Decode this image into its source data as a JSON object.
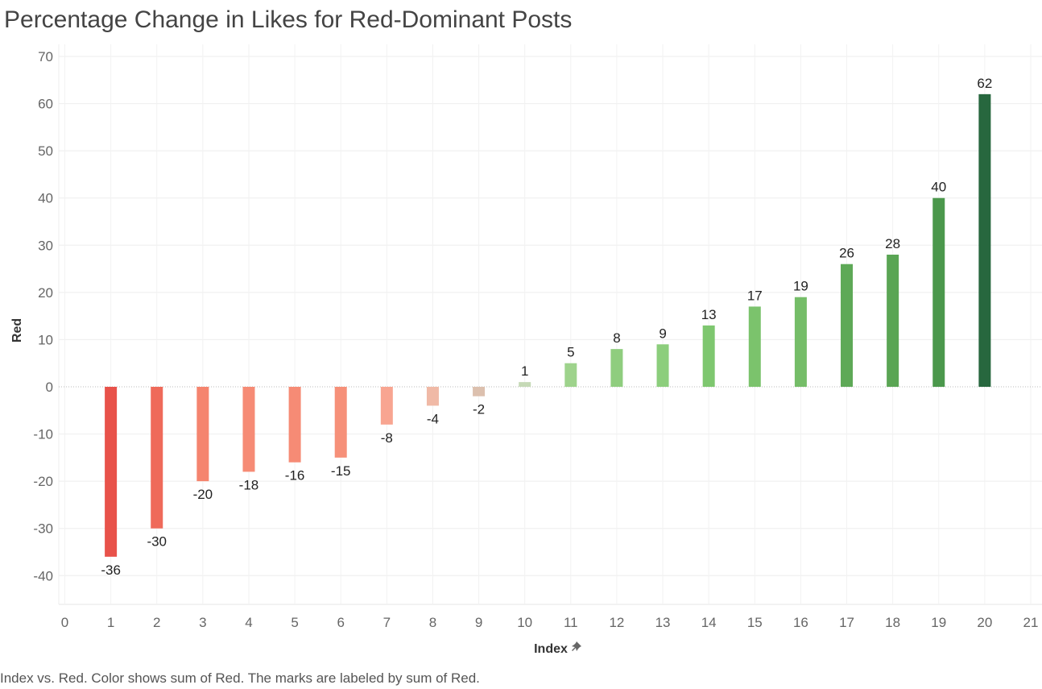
{
  "title": "Percentage Change in Likes for Red-Dominant Posts",
  "caption": "Index vs. Red.  Color shows sum of Red.  The marks are labeled by sum of Red.",
  "chart_data": {
    "type": "bar",
    "title": "Percentage Change in Likes for Red-Dominant Posts",
    "xlabel": "Index",
    "ylabel": "Red",
    "x": [
      1,
      2,
      3,
      4,
      5,
      6,
      7,
      8,
      9,
      10,
      11,
      12,
      13,
      14,
      15,
      16,
      17,
      18,
      19,
      20
    ],
    "values": [
      -36,
      -30,
      -20,
      -18,
      -16,
      -15,
      -8,
      -4,
      -2,
      1,
      5,
      8,
      9,
      13,
      17,
      19,
      26,
      28,
      40,
      62
    ],
    "colors": [
      "#e8524a",
      "#ef6a5a",
      "#f5846e",
      "#f68b75",
      "#f68b75",
      "#f69079",
      "#f8a591",
      "#f0b9a6",
      "#dcc0ae",
      "#c5d9b6",
      "#9ed38c",
      "#8fcd7e",
      "#8cce7c",
      "#7ec76f",
      "#7bc36c",
      "#75bd68",
      "#5ea957",
      "#5aa554",
      "#4b984c",
      "#27673e"
    ],
    "xlim": [
      0,
      21
    ],
    "ylim": [
      -45,
      72
    ],
    "xticks": [
      0,
      1,
      2,
      3,
      4,
      5,
      6,
      7,
      8,
      9,
      10,
      11,
      12,
      13,
      14,
      15,
      16,
      17,
      18,
      19,
      20,
      21
    ],
    "yticks": [
      70,
      60,
      50,
      40,
      30,
      20,
      10,
      0,
      -10,
      -20,
      -30,
      -40
    ],
    "grid": true,
    "legend": "none"
  },
  "icons": {
    "xlabel_pin": "pin-icon"
  }
}
